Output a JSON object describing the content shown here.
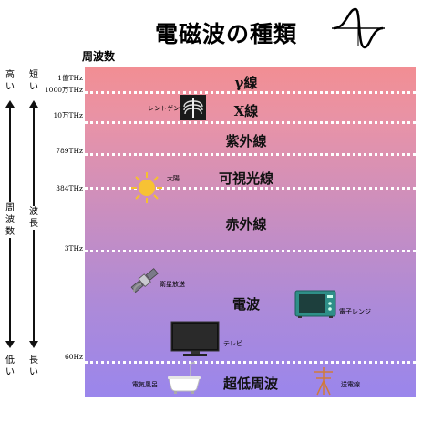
{
  "title": "電磁波の種類",
  "freq_header": "周波数",
  "axis": {
    "left_high": "高い",
    "left_low": "低い",
    "left_mid": "周波数",
    "right_short": "短い",
    "right_long": "長い",
    "right_mid": "波長"
  },
  "ticks": [
    "1億THz",
    "1000万THz",
    "10万THz",
    "789THz",
    "384THz",
    "3THz",
    "60Hz"
  ],
  "bands": [
    "γ線",
    "X線",
    "紫外線",
    "可視光線",
    "赤外線",
    "電波",
    "超低周波"
  ],
  "icon_labels": {
    "xray": "レントゲン",
    "sun": "太陽",
    "satellite": "衛星放送",
    "microwave": "電子レンジ",
    "tv": "テレビ",
    "bath": "電気風呂",
    "powerline": "送電線"
  }
}
